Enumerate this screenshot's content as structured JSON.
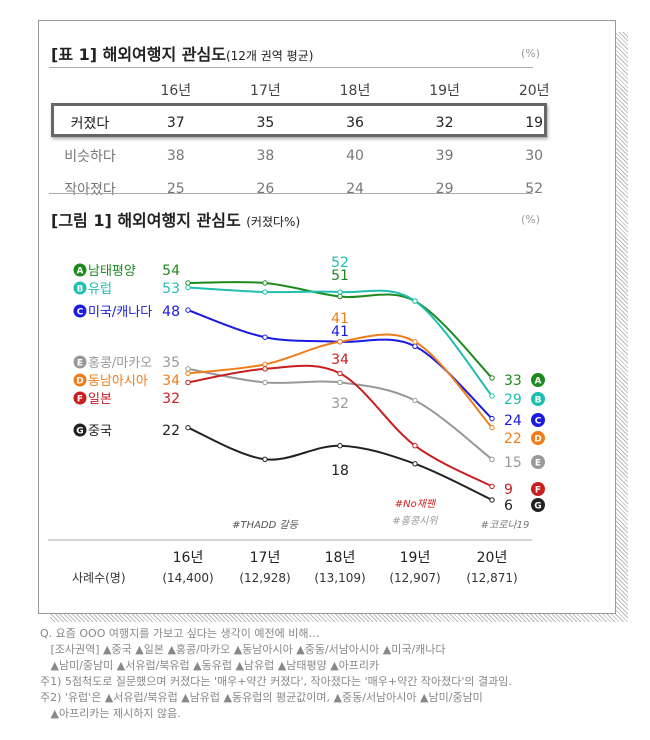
{
  "table": {
    "title": "[표 1] 해외여행지 관심도",
    "subtitle": "(12개 권역 평균)",
    "unit": "(%)",
    "columns": [
      "16년",
      "17년",
      "18년",
      "19년",
      "20년"
    ],
    "rows": [
      {
        "label": "커졌다",
        "values": [
          "37",
          "35",
          "36",
          "32",
          "19"
        ]
      },
      {
        "label": "비슷하다",
        "values": [
          "38",
          "38",
          "40",
          "39",
          "30"
        ]
      },
      {
        "label": "작아졌다",
        "values": [
          "25",
          "26",
          "24",
          "29",
          "52"
        ]
      }
    ]
  },
  "chart_data": {
    "type": "line",
    "title": "[그림 1] 해외여행지 관심도",
    "subtitle": "(커졌다%)",
    "unit": "(%)",
    "categories": [
      "16년",
      "17년",
      "18년",
      "19년",
      "20년"
    ],
    "sample_label": "사례수(명)",
    "samples": [
      "(14,400)",
      "(12,928)",
      "(13,109)",
      "(12,907)",
      "(12,871)"
    ],
    "series": [
      {
        "name": "남태평양",
        "badge": "A",
        "color": "#1e8a1e",
        "values": [
          54,
          54,
          51,
          50,
          33
        ],
        "labels": [
          true,
          false,
          true,
          false,
          true
        ]
      },
      {
        "name": "유럽",
        "badge": "B",
        "color": "#1fbfb0",
        "values": [
          53,
          52,
          52,
          50,
          29
        ],
        "labels": [
          true,
          false,
          true,
          false,
          true
        ]
      },
      {
        "name": "미국/캐나다",
        "badge": "C",
        "color": "#1a1ae0",
        "values": [
          48,
          42,
          41,
          40,
          24
        ],
        "labels": [
          true,
          false,
          true,
          false,
          true
        ]
      },
      {
        "name": "홍콩/마카오",
        "badge": "E",
        "color": "#999999",
        "values": [
          35,
          32,
          32,
          28,
          15
        ],
        "labels": [
          true,
          false,
          true,
          false,
          true
        ]
      },
      {
        "name": "동남아시아",
        "badge": "D",
        "color": "#f07d1a",
        "values": [
          34,
          36,
          41,
          41,
          22
        ],
        "labels": [
          true,
          false,
          true,
          false,
          true
        ]
      },
      {
        "name": "일본",
        "badge": "F",
        "color": "#c81e1e",
        "values": [
          32,
          35,
          34,
          18,
          9
        ],
        "labels": [
          true,
          false,
          true,
          false,
          true
        ]
      },
      {
        "name": "중국",
        "badge": "G",
        "color": "#222222",
        "values": [
          22,
          15,
          18,
          14,
          6
        ],
        "labels": [
          true,
          false,
          true,
          false,
          true
        ]
      }
    ],
    "annotations": [
      {
        "text": "#THADD 갈등",
        "at": "17년",
        "color": "#555"
      },
      {
        "text": "#No재팬",
        "at": "19년",
        "color": "#d02020"
      },
      {
        "text": "#홍콩시위",
        "at": "19년",
        "color": "#999"
      },
      {
        "text": "#코로나19",
        "at": "20년",
        "color": "#777"
      }
    ]
  },
  "notes": [
    "Q. 요즘 OOO 여행지를 가보고 싶다는 생각이 예전에 비해…",
    "   [조사권역] ▲중국 ▲일본 ▲홍콩/마카오 ▲동남아시아 ▲중동/서남아시아 ▲미국/캐나다",
    "   ▲남미/중남미 ▲서유럽/북유럽 ▲동유럽 ▲남유럽 ▲남태평양 ▲아프리카",
    "주1) 5점척도로 질문했으며 커졌다는 '매우+약간 커졌다', 작아졌다는 '매우+약간 작아졌다'의 결과임.",
    "주2) '유럽'은 ▲서유럽/북유럽 ▲남유럽 ▲동유럽의 평균값이며, ▲중동/서남아시아 ▲남미/중남미",
    "   ▲아프리카는 제시하지 않음."
  ]
}
